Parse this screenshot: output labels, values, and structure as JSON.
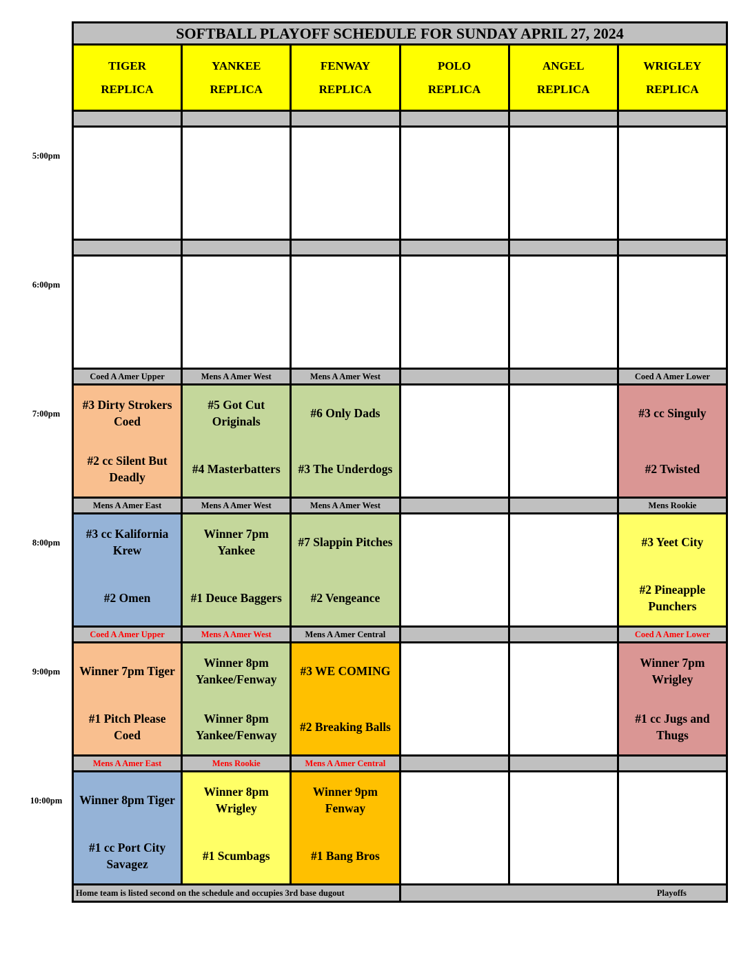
{
  "title": "SOFTBALL PLAYOFF SCHEDULE FOR SUNDAY APRIL 27, 2024",
  "fields": [
    {
      "name": "TIGER",
      "sub": "REPLICA"
    },
    {
      "name": "YANKEE",
      "sub": "REPLICA"
    },
    {
      "name": "FENWAY",
      "sub": "REPLICA"
    },
    {
      "name": "POLO",
      "sub": "REPLICA"
    },
    {
      "name": "ANGEL",
      "sub": "REPLICA"
    },
    {
      "name": "WRIGLEY",
      "sub": "REPLICA"
    }
  ],
  "colors": {
    "header": "#FFFF00",
    "bar": "#C0C0C0",
    "orange": "#F9BF8F",
    "green": "#C4D79B",
    "blue": "#95B3D7",
    "yellow": "#FFFF66",
    "gold": "#FFC000",
    "rose": "#DA9694",
    "white": "#FFFFFF",
    "red_text": "#FF0000"
  },
  "slots": [
    {
      "time": "5:00pm",
      "labels": [
        {
          "t": ""
        },
        {
          "t": ""
        },
        {
          "t": ""
        },
        {
          "t": ""
        },
        {
          "t": ""
        },
        {
          "t": ""
        }
      ],
      "games": [
        {
          "c": "white",
          "a": "",
          "b": ""
        },
        {
          "c": "white",
          "a": "",
          "b": ""
        },
        {
          "c": "white",
          "a": "",
          "b": ""
        },
        {
          "c": "white",
          "a": "",
          "b": ""
        },
        {
          "c": "white",
          "a": "",
          "b": ""
        },
        {
          "c": "white",
          "a": "",
          "b": ""
        }
      ]
    },
    {
      "time": "6:00pm",
      "labels": [
        {
          "t": ""
        },
        {
          "t": ""
        },
        {
          "t": ""
        },
        {
          "t": ""
        },
        {
          "t": ""
        },
        {
          "t": ""
        }
      ],
      "games": [
        {
          "c": "white",
          "a": "",
          "b": ""
        },
        {
          "c": "white",
          "a": "",
          "b": ""
        },
        {
          "c": "white",
          "a": "",
          "b": ""
        },
        {
          "c": "white",
          "a": "",
          "b": ""
        },
        {
          "c": "white",
          "a": "",
          "b": ""
        },
        {
          "c": "white",
          "a": "",
          "b": ""
        }
      ]
    },
    {
      "time": "7:00pm",
      "labels": [
        {
          "t": "Coed A Amer Upper"
        },
        {
          "t": "Mens A Amer West"
        },
        {
          "t": "Mens A Amer West"
        },
        {
          "t": ""
        },
        {
          "t": ""
        },
        {
          "t": "Coed A Amer Lower"
        }
      ],
      "games": [
        {
          "c": "orange",
          "a": "#3 Dirty Strokers Coed",
          "b": "#2 cc Silent But Deadly"
        },
        {
          "c": "green",
          "a": "#5 Got Cut Originals",
          "b": "#4 Masterbatters"
        },
        {
          "c": "green",
          "a": "#6 Only Dads",
          "b": "#3 The Underdogs"
        },
        {
          "c": "white",
          "a": "",
          "b": ""
        },
        {
          "c": "white",
          "a": "",
          "b": ""
        },
        {
          "c": "rose",
          "a": "#3 cc Singuly",
          "b": "#2 Twisted"
        }
      ]
    },
    {
      "time": "8:00pm",
      "labels": [
        {
          "t": "Mens A Amer East"
        },
        {
          "t": "Mens A Amer West"
        },
        {
          "t": "Mens A Amer West"
        },
        {
          "t": ""
        },
        {
          "t": ""
        },
        {
          "t": "Mens Rookie"
        }
      ],
      "games": [
        {
          "c": "blue",
          "a": "#3 cc Kalifornia Krew",
          "b": "#2 Omen"
        },
        {
          "c": "green",
          "a": "Winner 7pm Yankee",
          "b": "#1 Deuce Baggers"
        },
        {
          "c": "green",
          "a": "#7 Slappin Pitches",
          "b": "#2 Vengeance"
        },
        {
          "c": "white",
          "a": "",
          "b": ""
        },
        {
          "c": "white",
          "a": "",
          "b": ""
        },
        {
          "c": "yellow",
          "a": "#3 Yeet City",
          "b": "#2 Pineapple Punchers"
        }
      ]
    },
    {
      "time": "9:00pm",
      "labels": [
        {
          "t": "Coed A Amer Upper",
          "red": true
        },
        {
          "t": "Mens A Amer West",
          "red": true
        },
        {
          "t": "Mens A Amer Central"
        },
        {
          "t": ""
        },
        {
          "t": ""
        },
        {
          "t": "Coed A Amer Lower",
          "red": true
        }
      ],
      "games": [
        {
          "c": "orange",
          "a": "Winner 7pm Tiger",
          "b": "#1 Pitch Please Coed"
        },
        {
          "c": "green",
          "a": "Winner 8pm Yankee/Fenway",
          "b": "Winner 8pm Yankee/Fenway"
        },
        {
          "c": "gold",
          "a": "#3 WE COMING",
          "b": "#2 Breaking Balls"
        },
        {
          "c": "white",
          "a": "",
          "b": ""
        },
        {
          "c": "white",
          "a": "",
          "b": ""
        },
        {
          "c": "rose",
          "a": "Winner 7pm Wrigley",
          "b": "#1 cc Jugs and Thugs"
        }
      ]
    },
    {
      "time": "10:00pm",
      "labels": [
        {
          "t": "Mens A Amer East",
          "red": true
        },
        {
          "t": "Mens Rookie",
          "red": true
        },
        {
          "t": "Mens A Amer Central",
          "red": true
        },
        {
          "t": ""
        },
        {
          "t": ""
        },
        {
          "t": ""
        }
      ],
      "games": [
        {
          "c": "blue",
          "a": "Winner 8pm Tiger",
          "b": "#1 cc Port City Savagez"
        },
        {
          "c": "yellow",
          "a": "Winner 8pm Wrigley",
          "b": "#1 Scumbags"
        },
        {
          "c": "gold",
          "a": "Winner 9pm Fenway",
          "b": "#1 Bang Bros"
        },
        {
          "c": "white",
          "a": "",
          "b": ""
        },
        {
          "c": "white",
          "a": "",
          "b": ""
        },
        {
          "c": "white",
          "a": "",
          "b": ""
        }
      ]
    }
  ],
  "footer": {
    "note": "Home team is listed second on the schedule and occupies 3rd base dugout",
    "tag": "Playoffs"
  }
}
